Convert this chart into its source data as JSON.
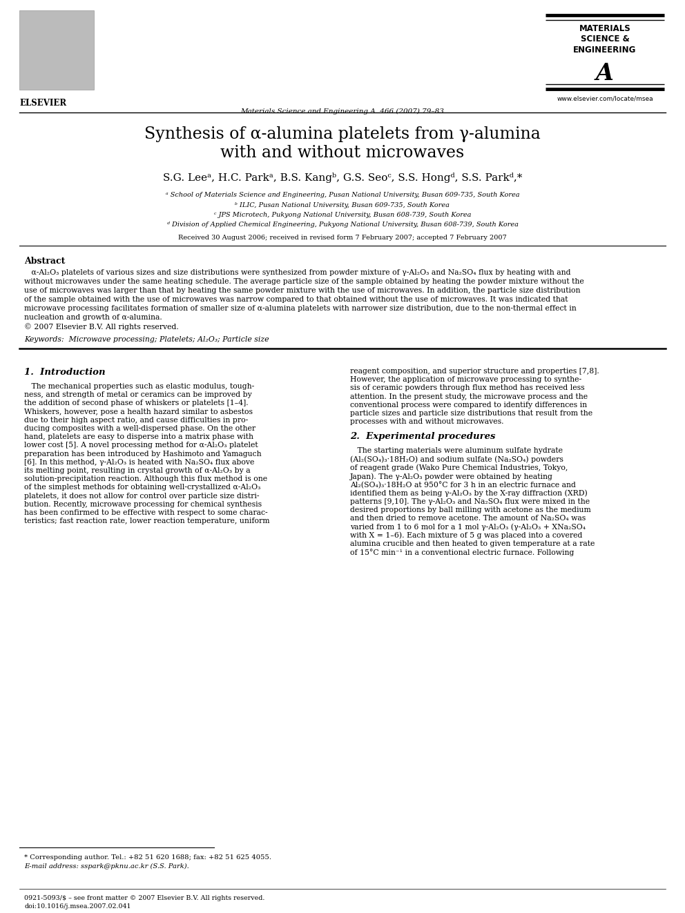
{
  "bg_color": "#ffffff",
  "title_line1": "Synthesis of α-alumina platelets from γ-alumina",
  "title_line2": "with and without microwaves",
  "journal_header": "Materials Science and Engineering A  466 (2007) 79–83",
  "website": "www.elsevier.com/locate/msea",
  "authors": "S.G. Leeᵃ, H.C. Parkᵃ, B.S. Kangᵇ, G.S. Seoᶜ, S.S. Hongᵈ, S.S. Parkᵈ,*",
  "affil_a": "ᵃ School of Materials Science and Engineering, Pusan National University, Busan 609-735, South Korea",
  "affil_b": "ᵇ ILIC, Pusan National University, Busan 609-735, South Korea",
  "affil_c": "ᶜ JPS Microtech, Pukyong National University, Busan 608-739, South Korea",
  "affil_d": "ᵈ Division of Applied Chemical Engineering, Pukyong National University, Busan 608-739, South Korea",
  "received": "Received 30 August 2006; received in revised form 7 February 2007; accepted 7 February 2007",
  "abstract_title": "Abstract",
  "abstract_text1": "   α-Al₂O₃ platelets of various sizes and size distributions were synthesized from powder mixture of γ-Al₂O₃ and Na₂SO₄ flux by heating with and",
  "abstract_text2": "without microwaves under the same heating schedule. The average particle size of the sample obtained by heating the powder mixture without the",
  "abstract_text3": "use of microwaves was larger than that by heating the same powder mixture with the use of microwaves. In addition, the particle size distribution",
  "abstract_text4": "of the sample obtained with the use of microwaves was narrow compared to that obtained without the use of microwaves. It was indicated that",
  "abstract_text5": "microwave processing facilitates formation of smaller size of α-alumina platelets with narrower size distribution, due to the non-thermal effect in",
  "abstract_text6": "nucleation and growth of α-alumina.",
  "abstract_text7": "© 2007 Elsevier B.V. All rights reserved.",
  "keywords": "Keywords:  Microwave processing; Platelets; Al₂O₃; Particle size",
  "section1_title": "1.  Introduction",
  "section1_col1_lines": [
    "   The mechanical properties such as elastic modulus, tough-",
    "ness, and strength of metal or ceramics can be improved by",
    "the addition of second phase of whiskers or platelets [1–4].",
    "Whiskers, however, pose a health hazard similar to asbestos",
    "due to their high aspect ratio, and cause difficulties in pro-",
    "ducing composites with a well-dispersed phase. On the other",
    "hand, platelets are easy to disperse into a matrix phase with",
    "lower cost [5]. A novel processing method for α-Al₂O₃ platelet",
    "preparation has been introduced by Hashimoto and Yamaguch",
    "[6]. In this method, γ-Al₂O₃ is heated with Na₂SO₄ flux above",
    "its melting point, resulting in crystal growth of α-Al₂O₃ by a",
    "solution-precipitation reaction. Although this flux method is one",
    "of the simplest methods for obtaining well-crystallized α-Al₂O₃",
    "platelets, it does not allow for control over particle size distri-",
    "bution. Recently, microwave processing for chemical synthesis",
    "has been confirmed to be effective with respect to some charac-",
    "teristics; fast reaction rate, lower reaction temperature, uniform"
  ],
  "section1_col2_lines": [
    "reagent composition, and superior structure and properties [7,8].",
    "However, the application of microwave processing to synthe-",
    "sis of ceramic powders through flux method has received less",
    "attention. In the present study, the microwave process and the",
    "conventional process were compared to identify differences in",
    "particle sizes and particle size distributions that result from the",
    "processes with and without microwaves."
  ],
  "section2_title": "2.  Experimental procedures",
  "section2_col2_lines": [
    "   The starting materials were aluminum sulfate hydrate",
    "(Al₂(SO₄)₃·18H₂O) and sodium sulfate (Na₂SO₄) powders",
    "of reagent grade (Wako Pure Chemical Industries, Tokyo,",
    "Japan). The γ-Al₂O₃ powder were obtained by heating",
    "Al₂(SO₄)₃·18H₂O at 950°C for 3 h in an electric furnace and",
    "identified them as being γ-Al₂O₃ by the X-ray diffraction (XRD)",
    "patterns [9,10]. The γ-Al₂O₃ and Na₂SO₄ flux were mixed in the",
    "desired proportions by ball milling with acetone as the medium",
    "and then dried to remove acetone. The amount of Na₂SO₄ was",
    "varied from 1 to 6 mol for a 1 mol γ-Al₂O₃ (γ-Al₂O₃ + XNa₂SO₄",
    "with X = 1–6). Each mixture of 5 g was placed into a covered",
    "alumina crucible and then heated to given temperature at a rate",
    "of 15°C min⁻¹ in a conventional electric furnace. Following"
  ],
  "footnote_star": "* Corresponding author. Tel.: +82 51 620 1688; fax: +82 51 625 4055.",
  "footnote_email": "E-mail address: sspark@pknu.ac.kr (S.S. Park).",
  "footer_left": "0921-5093/$ – see front matter © 2007 Elsevier B.V. All rights reserved.",
  "footer_doi": "doi:10.1016/j.msea.2007.02.041"
}
